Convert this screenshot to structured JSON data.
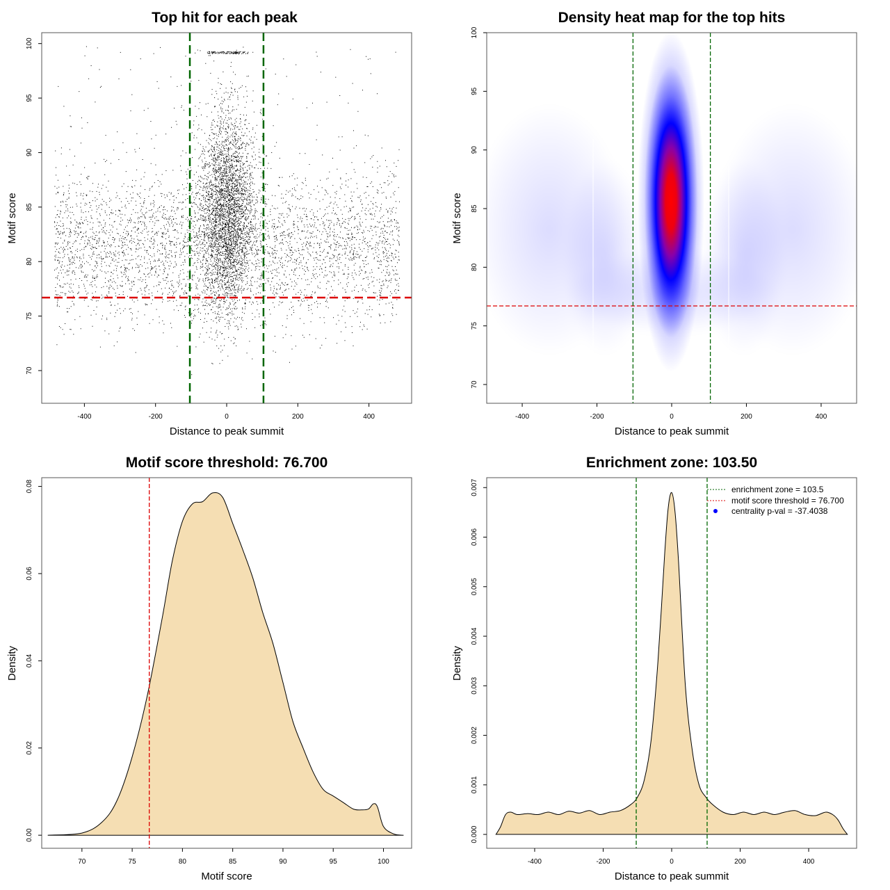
{
  "colors": {
    "threshold_red": "#dd0000",
    "zone_green": "#006600",
    "fill_wheat": "#f5deb3",
    "heat_blue": "#0000ff",
    "heat_red": "#ff0000"
  },
  "chart_data": [
    {
      "id": "p1",
      "type": "scatter",
      "title": "Top hit for each peak",
      "xlabel": "Distance to peak summit",
      "ylabel": "Motif score",
      "xlim": [
        -520,
        520
      ],
      "ylim": [
        67,
        101
      ],
      "xticks": [
        -400,
        -200,
        0,
        200,
        400
      ],
      "yticks": [
        70,
        75,
        80,
        85,
        90,
        95,
        100
      ],
      "hlines": [
        76.7
      ],
      "vlines": [
        -103.5,
        103.5
      ],
      "approx_points": 24000,
      "description_values": {
        "background_range_x": [
          -480,
          480
        ],
        "central_cluster_center_x": 0,
        "score_range": [
          69.5,
          99.8
        ]
      }
    },
    {
      "id": "p2",
      "type": "heatmap",
      "title": "Density heat map for the top hits",
      "xlabel": "Distance to peak summit",
      "ylabel": "Motif score",
      "xlim": [
        -495,
        495
      ],
      "ylim": [
        68.4,
        100
      ],
      "xticks": [
        -400,
        -200,
        0,
        200,
        400
      ],
      "yticks": [
        70,
        75,
        80,
        85,
        90,
        95,
        100
      ],
      "hlines": [
        76.7
      ],
      "vlines": [
        -103.5,
        103.5
      ],
      "density_peak": {
        "x": 0,
        "y": 85
      }
    },
    {
      "id": "p3",
      "type": "area",
      "title": "Motif score threshold: 76.700",
      "xlabel": "Motif score",
      "ylabel": "Density",
      "xlim": [
        66,
        102.8
      ],
      "ylim": [
        -0.003,
        0.082
      ],
      "xticks": [
        70,
        75,
        80,
        85,
        90,
        95,
        100
      ],
      "yticks": [
        0.0,
        0.02,
        0.04,
        0.06,
        0.08
      ],
      "ytick_labels": [
        "0.00",
        "0.02",
        "0.04",
        "0.06",
        "0.08"
      ],
      "vlines": [
        76.7
      ],
      "x": [
        66.6,
        70,
        72,
        73.5,
        75,
        76.5,
        78,
        79,
        80,
        81,
        82,
        83,
        84,
        85,
        86,
        87,
        88,
        89,
        90,
        91,
        92,
        93,
        94,
        95,
        96,
        97,
        97.8,
        98.5,
        99,
        99.4,
        100,
        101,
        102
      ],
      "y": [
        0.0,
        0.0005,
        0.003,
        0.008,
        0.018,
        0.032,
        0.05,
        0.063,
        0.072,
        0.076,
        0.0765,
        0.0785,
        0.0775,
        0.0715,
        0.0655,
        0.059,
        0.051,
        0.044,
        0.035,
        0.026,
        0.02,
        0.0145,
        0.0105,
        0.009,
        0.0075,
        0.006,
        0.0058,
        0.006,
        0.0072,
        0.0065,
        0.002,
        0.0003,
        0.0
      ]
    },
    {
      "id": "p4",
      "type": "area",
      "title": "Enrichment zone: 103.50",
      "xlabel": "Distance to peak summit",
      "ylabel": "Density",
      "xlim": [
        -540,
        540
      ],
      "ylim": [
        -0.00028,
        0.0072
      ],
      "xticks": [
        -400,
        -200,
        0,
        200,
        400
      ],
      "yticks": [
        0.0,
        0.001,
        0.002,
        0.003,
        0.004,
        0.005,
        0.006,
        0.007
      ],
      "ytick_labels": [
        "0.000",
        "0.001",
        "0.002",
        "0.003",
        "0.004",
        "0.005",
        "0.006",
        "0.007"
      ],
      "vlines": [
        -103.5,
        103.5
      ],
      "x": [
        -513,
        -500,
        -485,
        -470,
        -450,
        -420,
        -390,
        -360,
        -330,
        -300,
        -270,
        -240,
        -210,
        -180,
        -150,
        -120,
        -100,
        -80,
        -60,
        -40,
        -20,
        -10,
        0,
        10,
        20,
        40,
        60,
        80,
        100,
        120,
        150,
        180,
        210,
        240,
        270,
        300,
        330,
        360,
        390,
        420,
        450,
        470,
        485,
        500,
        513
      ],
      "y": [
        0.0,
        0.00015,
        0.0004,
        0.00045,
        0.0004,
        0.00042,
        0.0004,
        0.00045,
        0.0004,
        0.00047,
        0.00043,
        0.00048,
        0.0004,
        0.00045,
        0.00048,
        0.0006,
        0.00075,
        0.0011,
        0.0019,
        0.0035,
        0.0057,
        0.0066,
        0.0069,
        0.0065,
        0.0055,
        0.003,
        0.0017,
        0.001,
        0.00075,
        0.0006,
        0.00045,
        0.0004,
        0.00045,
        0.0004,
        0.00045,
        0.0004,
        0.00045,
        0.00048,
        0.0004,
        0.00038,
        0.00045,
        0.0004,
        0.0003,
        0.00012,
        0.0
      ],
      "legend": [
        {
          "label": "enrichment zone = 103.5",
          "style": "dotted-line",
          "color": "#006600"
        },
        {
          "label": "motif score threshold = 76.700",
          "style": "dotted-line",
          "color": "#dd0000"
        },
        {
          "label": "centrality p-val = -37.4038",
          "style": "point",
          "color": "#0000ff"
        }
      ],
      "legend_position": "top-right"
    }
  ]
}
